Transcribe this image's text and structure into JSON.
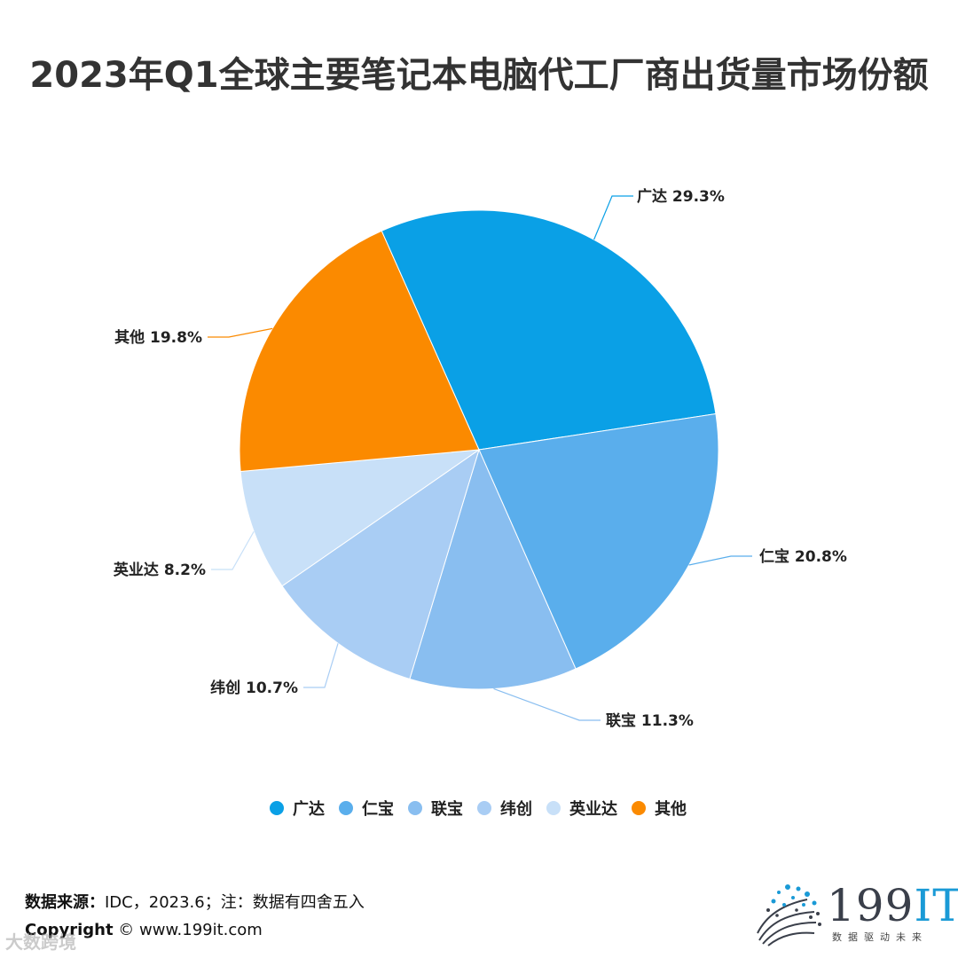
{
  "title": "2023年Q1全球主要笔记本电脑代工厂商出货量市场份额",
  "chart_data": {
    "type": "pie",
    "title": "2023年Q1全球主要笔记本电脑代工厂商出货量市场份额",
    "unit": "%",
    "legend_position": "bottom",
    "slices": [
      {
        "name": "广达",
        "value": 29.3,
        "label": "广达 29.3%",
        "color": "#0aa0e6"
      },
      {
        "name": "仁宝",
        "value": 20.8,
        "label": "仁宝 20.8%",
        "color": "#5aaeec"
      },
      {
        "name": "联宝",
        "value": 11.3,
        "label": "联宝 11.3%",
        "color": "#89bef0"
      },
      {
        "name": "纬创",
        "value": 10.7,
        "label": "纬创 10.7%",
        "color": "#a9cdf4"
      },
      {
        "name": "英业达",
        "value": 8.2,
        "label": "英业达 8.2%",
        "color": "#c8e0f8"
      },
      {
        "name": "其他",
        "value": 19.8,
        "label": "其他 19.8%",
        "color": "#fb8a00"
      }
    ]
  },
  "footer": {
    "source_label": "数据来源：",
    "source_text": "IDC，2023.6；注：数据有四舍五入",
    "copyright_label": "Copyright",
    "copyright_symbol": "©",
    "copyright_site": "www.199it.com",
    "watermark": "大数跨境"
  },
  "logo": {
    "main": "199",
    "accent": "IT",
    "tagline": "数据驱动未来",
    "icon": "dotted-sphere-logo-icon"
  }
}
